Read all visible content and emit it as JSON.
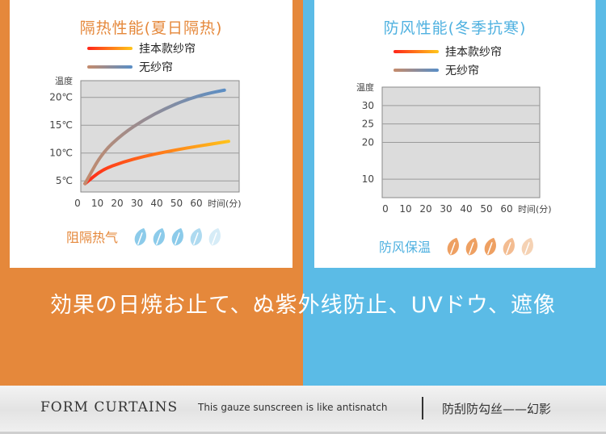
{
  "chart_data": [
    {
      "type": "line",
      "title": "隔热性能(夏日隔热)",
      "ylabel": "温度",
      "xlabel": "时间(分)",
      "x": [
        0,
        10,
        20,
        30,
        40,
        50,
        60
      ],
      "x_ticks": [
        "0",
        "10",
        "20",
        "30",
        "40",
        "50",
        "60"
      ],
      "y_ticks": [
        "5℃",
        "10℃",
        "15℃",
        "20℃"
      ],
      "xlim": [
        0,
        75
      ],
      "ylim": [
        3,
        23
      ],
      "series": [
        {
          "name": "挂本款纱帘",
          "x": [
            2,
            10,
            20,
            30,
            40,
            50,
            60,
            70
          ],
          "values": [
            4.5,
            7.0,
            8.4,
            9.4,
            10.2,
            10.9,
            11.5,
            12.1
          ]
        },
        {
          "name": "无纱帘",
          "x": [
            2,
            10,
            20,
            30,
            40,
            50,
            60,
            68
          ],
          "values": [
            4.5,
            10.0,
            13.5,
            16.0,
            18.0,
            19.6,
            20.7,
            21.3
          ]
        }
      ],
      "footer_label": "阻隔热气",
      "rating_icons": [
        "leaf-icon",
        "leaf-icon",
        "leaf-icon",
        "leaf-icon",
        "leaf-icon"
      ],
      "colors": {
        "title": "#e5883b",
        "rating": "#8ccbea",
        "rating_faded": "#d6ecf7"
      }
    },
    {
      "type": "line",
      "title": "防风性能(冬季抗寒)",
      "ylabel": "温度",
      "xlabel": "时间(分)",
      "x": [
        0,
        10,
        20,
        30,
        40,
        50,
        60
      ],
      "x_ticks": [
        "0",
        "10",
        "20",
        "30",
        "40",
        "50",
        "60"
      ],
      "y_ticks": [
        "10",
        "20",
        "25",
        "30"
      ],
      "xlim": [
        0,
        75
      ],
      "ylim": [
        5,
        35
      ],
      "series": [
        {
          "name": "挂本款纱帘",
          "x": [
            0,
            72
          ],
          "values": [
            26,
            26
          ]
        },
        {
          "name": "无纱帘",
          "x": [
            0,
            72
          ],
          "values": [
            20,
            20
          ]
        }
      ],
      "footer_label": "防风保温",
      "rating_icons": [
        "leaf-icon",
        "leaf-icon",
        "leaf-icon",
        "leaf-icon",
        "leaf-icon"
      ],
      "colors": {
        "title": "#4fb1e0",
        "rating": "#eea062",
        "rating_faded": "#f5d2b4"
      }
    }
  ],
  "slogan": "効果の日焼お止て、ぬ紫外线防止、UVドウ、遮像",
  "footer": {
    "brand": "FORM CURTAINS",
    "tagline": "This gauze sunscreen is like antisnatch",
    "subtitle": "防刮防勾丝——幻影"
  },
  "colors": {
    "orange_panel": "#e5883b",
    "blue_panel": "#5bbbe6",
    "curtain_line_start": "#ff2a1a",
    "curtain_line_end": "#ffc21a",
    "no_curtain_start": "#c28b6e",
    "no_curtain_end": "#5c8ec4"
  }
}
